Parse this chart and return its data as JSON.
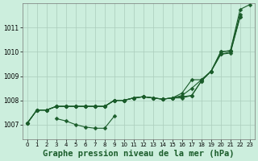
{
  "background_color": "#cceedd",
  "grid_color": "#aaccbb",
  "line_color": "#1a5c2a",
  "marker_color": "#1a5c2a",
  "title": "Graphe pression niveau de la mer (hPa)",
  "title_fontsize": 7.5,
  "xlim": [
    -0.5,
    23.5
  ],
  "ylim": [
    1006.4,
    1012.0
  ],
  "yticks": [
    1007,
    1008,
    1009,
    1010,
    1011
  ],
  "xticks": [
    0,
    1,
    2,
    3,
    4,
    5,
    6,
    7,
    8,
    9,
    10,
    11,
    12,
    13,
    14,
    15,
    16,
    17,
    18,
    19,
    20,
    21,
    22,
    23
  ],
  "lines": [
    {
      "x": [
        0,
        1,
        2,
        3,
        4,
        5,
        6,
        7,
        8,
        9,
        10,
        11,
        12,
        13,
        14,
        15,
        16,
        17,
        18,
        19,
        20,
        21,
        22
      ],
      "y": [
        1007.05,
        1007.6,
        1007.6,
        1007.75,
        1007.75,
        1007.75,
        1007.75,
        1007.75,
        1007.75,
        1008.0,
        1008.0,
        1008.1,
        1008.15,
        1008.1,
        1008.05,
        1008.1,
        1008.2,
        1008.5,
        1008.85,
        1009.2,
        1009.9,
        1010.0,
        1011.45
      ]
    },
    {
      "x": [
        0,
        1,
        2,
        3,
        4,
        5,
        6,
        7,
        8,
        9,
        10,
        11,
        12,
        13,
        14,
        15,
        16,
        17,
        18,
        19,
        20,
        21,
        22
      ],
      "y": [
        1007.05,
        1007.6,
        1007.6,
        1007.75,
        1007.75,
        1007.75,
        1007.75,
        1007.75,
        1007.75,
        1008.0,
        1008.0,
        1008.1,
        1008.15,
        1008.1,
        1008.05,
        1008.1,
        1008.3,
        1008.85,
        1008.85,
        1009.2,
        1009.9,
        1009.95,
        1011.45
      ]
    },
    {
      "x": [
        0,
        1,
        2,
        3,
        4,
        5,
        6,
        7,
        8,
        9,
        10,
        11,
        12,
        13,
        14,
        15,
        16,
        17,
        18,
        19,
        20,
        21,
        22
      ],
      "y": [
        1007.05,
        1007.6,
        1007.6,
        1007.75,
        1007.75,
        1007.75,
        1007.75,
        1007.75,
        1007.75,
        1008.0,
        1008.0,
        1008.1,
        1008.15,
        1008.1,
        1008.05,
        1008.1,
        1008.15,
        1008.2,
        1008.8,
        1009.2,
        1010.0,
        1010.05,
        1011.55
      ]
    },
    {
      "x": [
        0,
        1,
        2,
        3,
        4,
        5,
        6,
        7,
        8,
        9,
        10,
        11,
        12,
        13,
        14,
        15,
        16,
        17,
        18,
        19,
        20,
        21,
        22,
        23
      ],
      "y": [
        1007.05,
        1007.6,
        1007.6,
        1007.75,
        1007.75,
        1007.75,
        1007.75,
        1007.75,
        1007.75,
        1008.0,
        1008.0,
        1008.1,
        1008.15,
        1008.1,
        1008.05,
        1008.1,
        1008.1,
        1008.2,
        1008.8,
        1009.2,
        1010.0,
        1010.05,
        1011.75,
        1011.95
      ]
    }
  ],
  "dip_line": {
    "x": [
      3,
      4,
      5,
      6,
      7,
      8,
      9
    ],
    "y": [
      1007.25,
      1007.15,
      1007.0,
      1006.9,
      1006.85,
      1006.85,
      1007.35
    ]
  },
  "line_start": {
    "x": [
      0
    ],
    "y": [
      1007.05
    ]
  }
}
